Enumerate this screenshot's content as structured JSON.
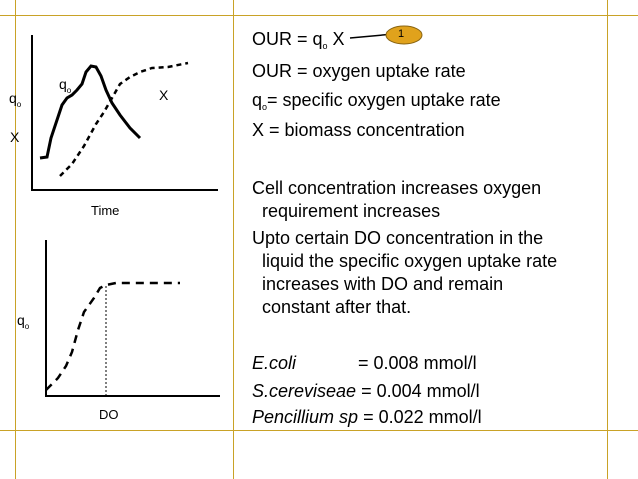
{
  "colors": {
    "frame": "#c9a227",
    "badge": "#e0a21c"
  },
  "graph1": {
    "y_label_q_sym": "q",
    "y_label_q_sub": "o",
    "y_label_x": "X",
    "curve_q_label_sym": "q",
    "curve_q_label_sub": "o",
    "curve_x_label": "X",
    "x_label": "Time"
  },
  "graph2": {
    "y_label_sym": "q",
    "y_label_sub": "o",
    "x_label": "DO"
  },
  "badge": {
    "number": "1"
  },
  "text": {
    "eq_prefix": "OUR = q",
    "eq_sub": "o",
    "eq_suffix": " X",
    "def_our": "OUR = oxygen uptake rate",
    "def_q_sym": "q",
    "def_q_sub": "o",
    "def_q_rest": "= specific oxygen uptake rate",
    "def_x": "X = biomass concentration",
    "p1_line1": "Cell concentration increases oxygen",
    "p1_line2": "requirement increases",
    "p2_line1": "Upto certain DO concentration in the",
    "p2_line2": "liquid the specific oxygen uptake rate",
    "p2_line3": "increases with DO and remain",
    "p2_line4": "constant after that.",
    "org1_name": "E.coli",
    "org1_value": "= 0.008 mmol/l",
    "org2_name": "S.cereviseae",
    "org2_value": "= 0.004 mmol/l",
    "org3_name": "Pencillium sp",
    "org3_value": "= 0.022 mmol/l"
  }
}
